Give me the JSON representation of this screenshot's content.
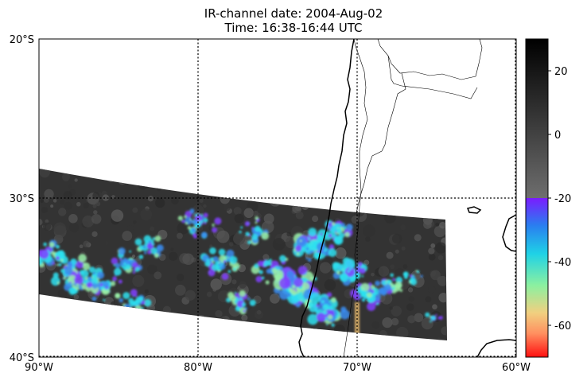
{
  "title_line1": "IR-channel date: 2004-Aug-02",
  "title_line2": "Time: 16:38-16:44 UTC",
  "map": {
    "lon_range": [
      -90,
      -60
    ],
    "lat_range": [
      -40,
      -20
    ],
    "lon_ticks": [
      {
        "value": -90,
        "label": "90°W"
      },
      {
        "value": -80,
        "label": "80°W"
      },
      {
        "value": -70,
        "label": "70°W"
      },
      {
        "value": -60,
        "label": "60°W"
      }
    ],
    "lat_ticks": [
      {
        "value": -20,
        "label": "20°S"
      },
      {
        "value": -30,
        "label": "30°S"
      },
      {
        "value": -40,
        "label": "40°S"
      }
    ],
    "gridlines": "dotted"
  },
  "colorbar": {
    "range": [
      -70,
      30
    ],
    "ticks": [
      {
        "value": 20,
        "label": "20"
      },
      {
        "value": 0,
        "label": "0"
      },
      {
        "value": -20,
        "label": "-20"
      },
      {
        "value": -40,
        "label": "-40"
      },
      {
        "value": -60,
        "label": "-60"
      }
    ],
    "split_value": -20,
    "gray_colors": [
      "#000000",
      "#6e6e6e"
    ],
    "rainbow_colors": [
      "#7a1cff",
      "#2a7df0",
      "#1fd2e6",
      "#8cf0a0",
      "#f0d080",
      "#ff9060",
      "#ff1010"
    ]
  },
  "colors": {
    "swath_base": "#333333",
    "cloud_cyan": "#2de0f0",
    "cloud_green": "#9af0a8",
    "cloud_purple": "#8040ff",
    "cloud_blue": "#3a8cf0",
    "coastline": "#000000"
  }
}
